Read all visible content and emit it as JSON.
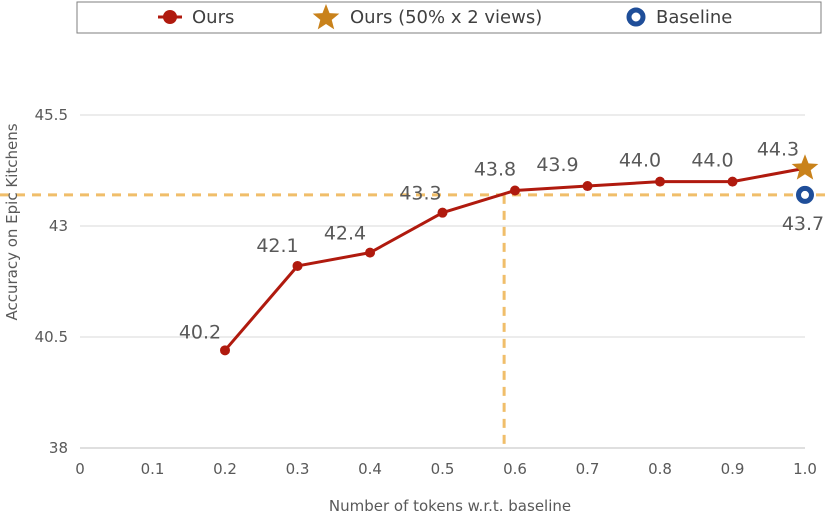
{
  "chart_data": {
    "type": "line",
    "xlabel": "Number of tokens w.r.t. baseline",
    "ylabel": "Accuracy on Epic Kitchens",
    "xlim": [
      0,
      1.0
    ],
    "ylim": [
      38,
      45.5
    ],
    "xticks": [
      "0",
      "0.1",
      "0.2",
      "0.3",
      "0.4",
      "0.5",
      "0.6",
      "0.7",
      "0.8",
      "0.9",
      "1.0"
    ],
    "yticks": [
      "38",
      "40.5",
      "43",
      "45.5"
    ],
    "grid": "horizontal",
    "legend_position": "top",
    "series": [
      {
        "name": "Ours",
        "marker": "circle",
        "color": "#B01A0E",
        "x": [
          0.2,
          0.3,
          0.4,
          0.5,
          0.6,
          0.7,
          0.8,
          0.9
        ],
        "y": [
          40.2,
          42.1,
          42.4,
          43.3,
          43.8,
          43.9,
          44.0,
          44.0
        ],
        "labels": [
          "40.2",
          "42.1",
          "42.4",
          "43.3",
          "43.8",
          "43.9",
          "44.0",
          "44.0"
        ]
      },
      {
        "name": "Ours (50% x 2 views)",
        "marker": "star",
        "color": "#C9821B",
        "x": [
          1.0
        ],
        "y": [
          44.3
        ],
        "labels": [
          "44.3"
        ]
      },
      {
        "name": "Baseline",
        "marker": "ring",
        "color": "#1F4E99",
        "x": [
          1.0
        ],
        "y": [
          43.7
        ],
        "labels": [
          "43.7"
        ]
      }
    ],
    "reference_lines": {
      "color": "#F0BE6A",
      "horizontal_y": 43.7,
      "vertical_x": 0.585
    }
  }
}
